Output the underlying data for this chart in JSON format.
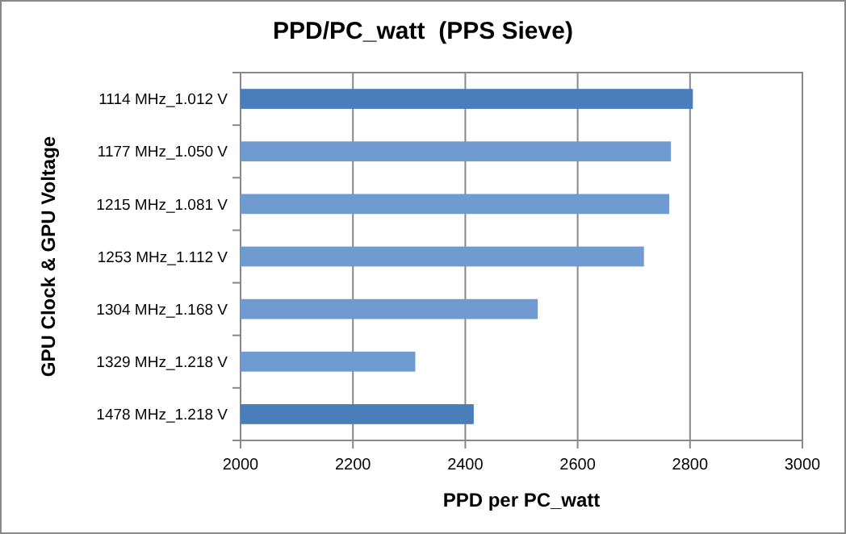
{
  "chart_data": {
    "type": "bar",
    "orientation": "horizontal",
    "title": "PPD/PC_watt  (PPS Sieve)",
    "xlabel": "PPD per PC_watt",
    "ylabel": "GPU Clock & GPU Voltage",
    "categories": [
      "1114 MHz_1.012 V",
      "1177 MHz_1.050 V",
      "1215 MHz_1.081 V",
      "1253 MHz_1.112 V",
      "1304 MHz_1.168 V",
      "1329 MHz_1.218 V",
      "1478 MHz_1.218 V"
    ],
    "values": [
      2805,
      2766,
      2763,
      2718,
      2529,
      2311,
      2415
    ],
    "colors": [
      "#4a7ebb",
      "#6f9bd0",
      "#6f9bd0",
      "#6f9bd0",
      "#6f9bd0",
      "#6f9bd0",
      "#4a7ebb"
    ],
    "xlim": [
      2000,
      3000
    ],
    "xticks": [
      2000,
      2200,
      2400,
      2600,
      2800,
      3000
    ],
    "grid": "x"
  }
}
